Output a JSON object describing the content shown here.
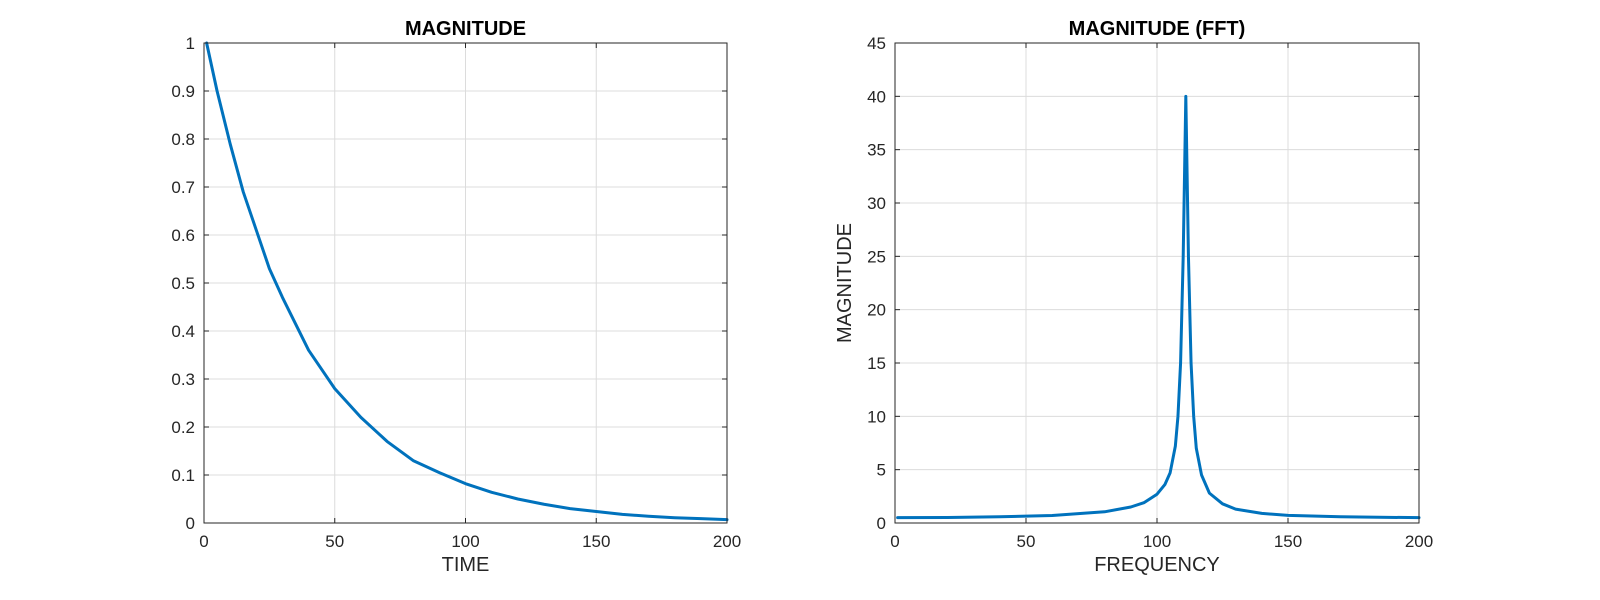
{
  "chart_data": [
    {
      "type": "line",
      "title": "MAGNITUDE",
      "xlabel": "TIME",
      "ylabel": "",
      "xlim": [
        0,
        200
      ],
      "ylim": [
        0,
        1
      ],
      "xticks": [
        0,
        50,
        100,
        150,
        200
      ],
      "yticks": [
        0,
        0.1,
        0.2,
        0.3,
        0.4,
        0.5,
        0.6,
        0.7,
        0.8,
        0.9,
        1
      ],
      "grid": true,
      "line_color": "#0072BD",
      "series": [
        {
          "x": [
            1,
            5,
            10,
            15,
            20,
            25,
            30,
            40,
            50,
            60,
            70,
            80,
            90,
            100,
            110,
            120,
            130,
            140,
            150,
            160,
            170,
            180,
            190,
            200
          ],
          "y": [
            1.0,
            0.9,
            0.79,
            0.69,
            0.61,
            0.53,
            0.47,
            0.36,
            0.28,
            0.22,
            0.17,
            0.13,
            0.105,
            0.082,
            0.064,
            0.05,
            0.039,
            0.03,
            0.024,
            0.018,
            0.014,
            0.011,
            0.009,
            0.007
          ]
        }
      ]
    },
    {
      "type": "line",
      "title": "MAGNITUDE (FFT)",
      "xlabel": "FREQUENCY",
      "ylabel": "MAGNITUDE",
      "xlim": [
        0,
        200
      ],
      "ylim": [
        0,
        45
      ],
      "xticks": [
        0,
        50,
        100,
        150,
        200
      ],
      "yticks": [
        0,
        5,
        10,
        15,
        20,
        25,
        30,
        35,
        40,
        45
      ],
      "grid": true,
      "line_color": "#0072BD",
      "series": [
        {
          "x": [
            1,
            20,
            40,
            60,
            80,
            90,
            95,
            100,
            103,
            105,
            107,
            108,
            109,
            110,
            111,
            112,
            113,
            114,
            115,
            117,
            120,
            125,
            130,
            140,
            150,
            170,
            200
          ],
          "y": [
            0.5,
            0.52,
            0.58,
            0.7,
            1.05,
            1.5,
            1.9,
            2.7,
            3.6,
            4.7,
            7.2,
            10.0,
            15.0,
            25.0,
            40.0,
            25.0,
            15.0,
            10.0,
            7.0,
            4.5,
            2.8,
            1.8,
            1.3,
            0.9,
            0.72,
            0.58,
            0.5
          ]
        }
      ]
    }
  ]
}
